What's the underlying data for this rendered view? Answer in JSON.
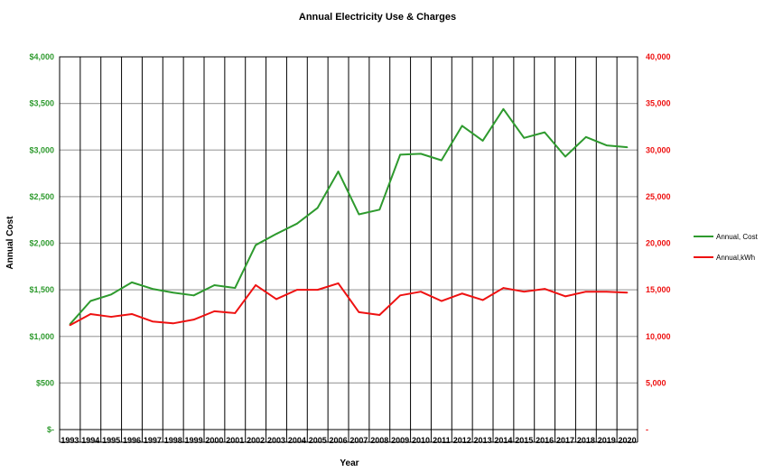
{
  "chart_data": {
    "type": "line",
    "title": "Annual Electricity Use & Charges",
    "xlabel": "Year",
    "ylabel": "Annual Cost",
    "y2label": "",
    "categories": [
      "1993",
      "1994",
      "1995",
      "1996",
      "1997",
      "1998",
      "1999",
      "2000",
      "2001",
      "2002",
      "2003",
      "2004",
      "2005",
      "2006",
      "2007",
      "2008",
      "2009",
      "2010",
      "2011",
      "2012",
      "2013",
      "2014",
      "2015",
      "2016",
      "2017",
      "2018",
      "2019",
      "2020"
    ],
    "ylim": [
      0,
      4000
    ],
    "y2lim": [
      0,
      40000
    ],
    "yticks": [
      "$-",
      "$500",
      "$1,000",
      "$1,500",
      "$2,000",
      "$2,500",
      "$3,000",
      "$3,500",
      "$4,000"
    ],
    "y2ticks": [
      "-",
      "5,000",
      "10,000",
      "15,000",
      "20,000",
      "25,000",
      "30,000",
      "35,000",
      "40,000"
    ],
    "grid": true,
    "legend_position": "right",
    "series": [
      {
        "name": "Annual, Cost",
        "axis": "left",
        "color": "#2e9a2e",
        "values": [
          1130,
          1380,
          1450,
          1580,
          1510,
          1470,
          1440,
          1550,
          1520,
          1980,
          2100,
          2210,
          2380,
          2770,
          2310,
          2360,
          2950,
          2960,
          2890,
          3260,
          3100,
          3440,
          3130,
          3190,
          2930,
          3140,
          3050,
          3030
        ]
      },
      {
        "name": "Annual,kWh",
        "axis": "right",
        "color": "#ee1111",
        "values": [
          11200,
          12400,
          12100,
          12400,
          11600,
          11400,
          11800,
          12700,
          12500,
          15500,
          14000,
          15000,
          15000,
          15700,
          12600,
          12300,
          14400,
          14800,
          13800,
          14600,
          13900,
          15200,
          14800,
          15100,
          14300,
          14800,
          14800,
          14700
        ]
      }
    ],
    "left_tick_color": "#2e9a2e",
    "right_tick_color": "#ee1111"
  }
}
